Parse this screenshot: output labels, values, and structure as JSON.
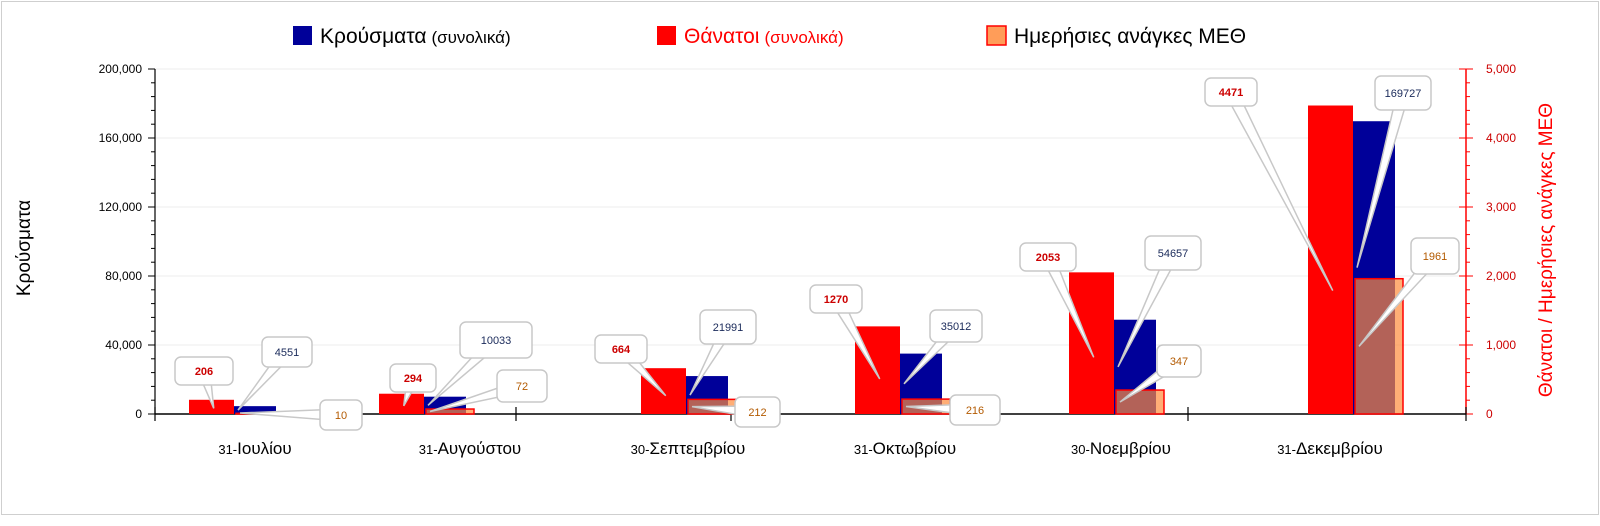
{
  "chart_data": {
    "type": "bar",
    "categories": [
      "31-Ιουλίου",
      "31-Αυγούστου",
      "30-Σεπτεμβρίου",
      "31-Οκτωβρίου",
      "30-Νοεμβρίου",
      "31-Δεκεμβρίου"
    ],
    "category_parts": [
      [
        "31-",
        "Ιουλίου"
      ],
      [
        "31-",
        "Αυγούστου"
      ],
      [
        "30-",
        "Σεπτεμβρίου"
      ],
      [
        "31-",
        "Οκτωβρίου"
      ],
      [
        "30-",
        "Νοεμβρίου"
      ],
      [
        "31-",
        "Δεκεμβρίου"
      ]
    ],
    "series": [
      {
        "name": "Θάνατοι (συνολικά)",
        "axis": "right",
        "color": "#ff0000",
        "label_color": "#cc0000",
        "values": [
          206,
          294,
          664,
          1270,
          2053,
          4471
        ]
      },
      {
        "name": "Κρούσματα (συνολικά)",
        "axis": "left",
        "color": "#000099",
        "label_color": "#1a2a5a",
        "values": [
          4551,
          10033,
          21991,
          35012,
          54657,
          169727
        ]
      },
      {
        "name": "Ημερήσιες ανάγκες ΜΕΘ",
        "axis": "right",
        "color": "#ff8c3c",
        "label_color": "#b35a00",
        "values": [
          10,
          72,
          212,
          216,
          347,
          1961
        ]
      }
    ],
    "legend": {
      "placement": "top",
      "items": [
        {
          "main": "Κρούσματα",
          "sub": "(συνολικά)",
          "color": "#000099",
          "text_color": "#000000"
        },
        {
          "main": "Θάνατοι",
          "sub": "(συνολικά)",
          "color": "#ff0000",
          "text_color": "#ff0000"
        },
        {
          "main": "Ημερήσιες ανάγκες ΜΕΘ",
          "sub": "",
          "color": "#ff8c3c",
          "text_color": "#000000"
        }
      ]
    },
    "ylabel": "Κρούσματα",
    "y2label": "Θάνατοι / Ημερήσιες ανάγκες ΜΕΘ",
    "ylim": [
      0,
      200000
    ],
    "y2lim": [
      0,
      5000
    ],
    "yticks": [
      "0",
      "40,000",
      "80,000",
      "120,000",
      "160,000",
      "200,000"
    ],
    "y2ticks": [
      "0",
      "1,000",
      "2,000",
      "3,000",
      "4,000",
      "5,000"
    ],
    "grid": true
  }
}
